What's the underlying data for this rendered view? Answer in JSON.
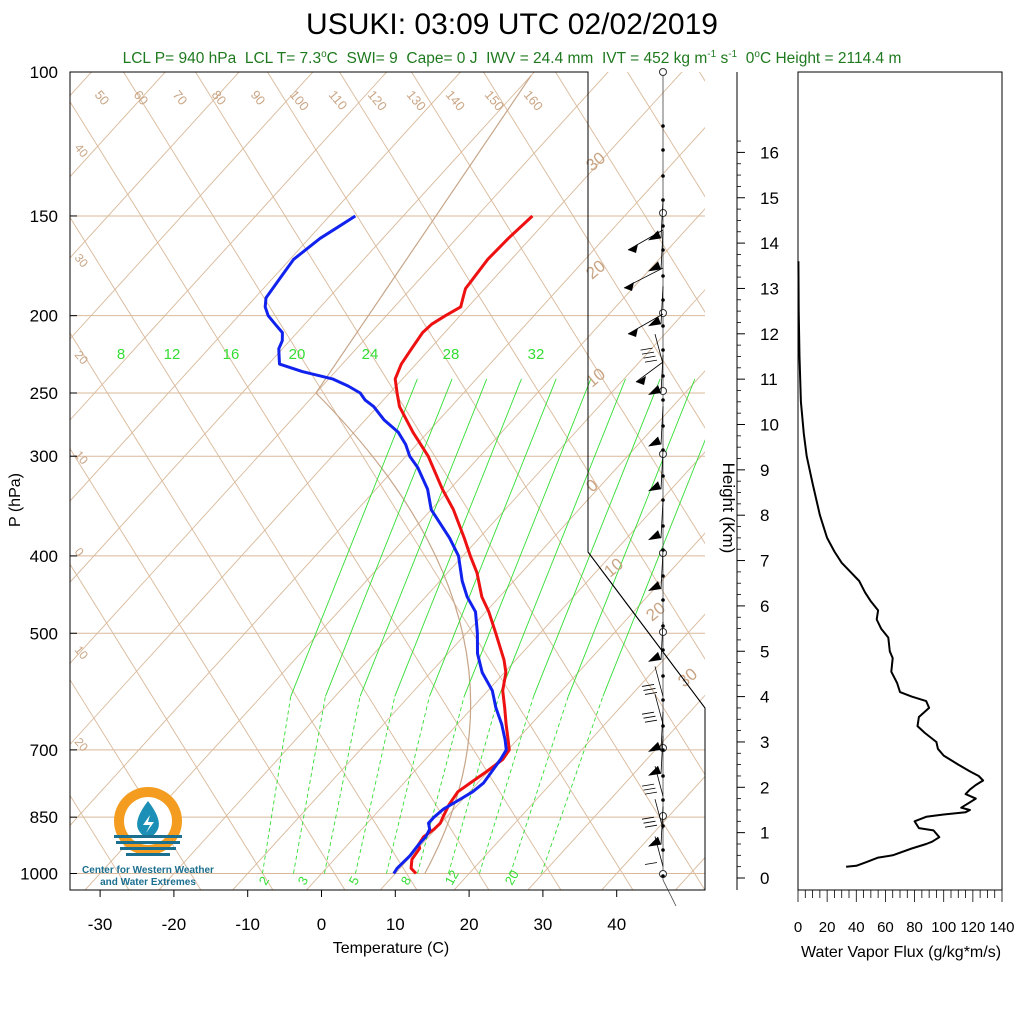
{
  "title": "USUKI: 03:09 UTC 02/02/2019",
  "indices": {
    "lcl_p": "LCL P= 940 hPa",
    "lcl_t": "LCL T= 7.3",
    "lcl_t_unit": "C",
    "swi": "SWI= 9",
    "cape": "Cape= 0 J",
    "iwv": "IWV = 24.4 mm",
    "ivt": "IVT = 452 kg m",
    "ivt_unit_s": " s",
    "zero_c": "0",
    "zero_c_rest": "C Height = 2114.4 m"
  },
  "logo": {
    "line1": "Center for Western Weather",
    "line2": "and Water Extremes"
  },
  "colors": {
    "temperature": "#ee1111",
    "dewpoint": "#1122ee",
    "isotherms": "#d9b99a",
    "mixing_ratio": "#33dd33",
    "info_text": "#1f7a1f",
    "logo_orange": "#f39c1f",
    "logo_blue": "#1b6f8f"
  },
  "chart_data": [
    {
      "type": "line",
      "subtype": "skew-T log-P sounding",
      "xlabel": "Temperature (C)",
      "ylabel": "P (hPa)",
      "xlim": [
        -34,
        44
      ],
      "ylim": [
        1050,
        100
      ],
      "x_ticks": [
        -30,
        -20,
        -10,
        0,
        10,
        20,
        30,
        40
      ],
      "y_ticks": [
        1000,
        850,
        700,
        500,
        400,
        300,
        250,
        200,
        150,
        100
      ],
      "isotherm_labels": [
        {
          "p": 115,
          "t": "50"
        },
        {
          "p": 115,
          "t": "60"
        },
        {
          "p": 115,
          "t": "70"
        },
        {
          "p": 115,
          "t": "80"
        },
        {
          "p": 115,
          "t": "90"
        },
        {
          "p": 115,
          "t": "100"
        },
        {
          "p": 115,
          "t": "110"
        },
        {
          "p": 115,
          "t": "120"
        },
        {
          "p": 115,
          "t": "130"
        },
        {
          "p": 115,
          "t": "140"
        },
        {
          "p": 115,
          "t": "150"
        },
        {
          "p": 115,
          "t": "160"
        }
      ],
      "left_labels": [
        "40",
        "30",
        "20",
        "10",
        "0",
        "10",
        "20"
      ],
      "right_labels": [
        "30",
        "20",
        "10",
        "0",
        "10",
        "20",
        "30"
      ],
      "mixing_ratio_labels_top": [
        "8",
        "12",
        "16",
        "20",
        "24",
        "28",
        "32"
      ],
      "mixing_ratio_labels_bottom": [
        "2",
        "3",
        "5",
        "8",
        "12",
        "20"
      ],
      "series": [
        {
          "name": "Temperature",
          "points": [
            [
              1000,
              12.8
            ],
            [
              985,
              11.5
            ],
            [
              960,
              10.5
            ],
            [
              930,
              10.2
            ],
            [
              920,
              9.6
            ],
            [
              900,
              9.3
            ],
            [
              880,
              9.8
            ],
            [
              865,
              9.9
            ],
            [
              850,
              9.5
            ],
            [
              820,
              8.8
            ],
            [
              790,
              8.4
            ],
            [
              770,
              9.0
            ],
            [
              745,
              9.8
            ],
            [
              720,
              10.5
            ],
            [
              700,
              10.2
            ],
            [
              680,
              8.8
            ],
            [
              650,
              6.6
            ],
            [
              620,
              4.4
            ],
            [
              590,
              2.0
            ],
            [
              560,
              0.2
            ],
            [
              540,
              -1.6
            ],
            [
              500,
              -6.0
            ],
            [
              470,
              -9.6
            ],
            [
              450,
              -12.4
            ],
            [
              420,
              -16.0
            ],
            [
              400,
              -19.0
            ],
            [
              380,
              -22.0
            ],
            [
              350,
              -27.0
            ],
            [
              330,
              -31.0
            ],
            [
              300,
              -37.0
            ],
            [
              280,
              -42.0
            ],
            [
              260,
              -47.0
            ],
            [
              250,
              -49.0
            ],
            [
              240,
              -51.0
            ],
            [
              230,
              -52.0
            ],
            [
              220,
              -52.5
            ],
            [
              210,
              -53.0
            ],
            [
              205,
              -52.8
            ],
            [
              200,
              -52.0
            ],
            [
              195,
              -51.0
            ],
            [
              190,
              -51.8
            ],
            [
              185,
              -52.6
            ],
            [
              180,
              -52.8
            ],
            [
              170,
              -53.2
            ],
            [
              160,
              -53.0
            ],
            [
              150,
              -52.5
            ]
          ]
        },
        {
          "name": "Dewpoint",
          "points": [
            [
              1000,
              9.8
            ],
            [
              985,
              9.6
            ],
            [
              950,
              9.8
            ],
            [
              920,
              9.6
            ],
            [
              900,
              9.6
            ],
            [
              880,
              9.2
            ],
            [
              865,
              8.3
            ],
            [
              850,
              8.3
            ],
            [
              830,
              8.6
            ],
            [
              810,
              9.5
            ],
            [
              790,
              10.4
            ],
            [
              770,
              10.8
            ],
            [
              745,
              10.5
            ],
            [
              720,
              10.2
            ],
            [
              700,
              9.8
            ],
            [
              680,
              8.4
            ],
            [
              650,
              6.0
            ],
            [
              620,
              3.2
            ],
            [
              590,
              0.6
            ],
            [
              560,
              -3.0
            ],
            [
              530,
              -6.0
            ],
            [
              500,
              -8.5
            ],
            [
              470,
              -11.4
            ],
            [
              450,
              -14.4
            ],
            [
              430,
              -17.0
            ],
            [
              400,
              -20.6
            ],
            [
              380,
              -24.0
            ],
            [
              350,
              -30.0
            ],
            [
              330,
              -33.0
            ],
            [
              310,
              -37.0
            ],
            [
              300,
              -39.5
            ],
            [
              290,
              -41.5
            ],
            [
              280,
              -44.0
            ],
            [
              270,
              -47.5
            ],
            [
              260,
              -50.5
            ],
            [
              255,
              -52.5
            ],
            [
              250,
              -54.0
            ],
            [
              245,
              -56.5
            ],
            [
              240,
              -59.5
            ],
            [
              235,
              -64.5
            ],
            [
              230,
              -68.5
            ],
            [
              225,
              -69.5
            ],
            [
              220,
              -70.5
            ],
            [
              215,
              -71.0
            ],
            [
              210,
              -72.0
            ],
            [
              205,
              -74.0
            ],
            [
              200,
              -76.0
            ],
            [
              195,
              -77.5
            ],
            [
              190,
              -78.5
            ],
            [
              180,
              -79.0
            ],
            [
              170,
              -79.5
            ],
            [
              160,
              -78.5
            ],
            [
              155,
              -77.5
            ],
            [
              150,
              -76.5
            ]
          ]
        }
      ]
    },
    {
      "type": "barbs",
      "name": "Wind profile",
      "barbs": [
        {
          "p": 1000,
          "kind": "calm"
        },
        {
          "p": 980,
          "kind": "barb",
          "fl": 1,
          "half": 1
        },
        {
          "p": 920,
          "kind": "flag"
        },
        {
          "p": 880,
          "kind": "barb",
          "fl": 3,
          "half": 1
        },
        {
          "p": 800,
          "kind": "barb",
          "fl": 3,
          "half": 0
        },
        {
          "p": 750,
          "kind": "flag"
        },
        {
          "p": 700,
          "kind": "flag"
        },
        {
          "p": 650,
          "kind": "barb",
          "fl": 3,
          "half": 1
        },
        {
          "p": 600,
          "kind": "barb",
          "fl": 3,
          "half": 0
        },
        {
          "p": 540,
          "kind": "flag"
        },
        {
          "p": 440,
          "kind": "flag"
        },
        {
          "p": 380,
          "kind": "flag"
        },
        {
          "p": 330,
          "kind": "flag"
        },
        {
          "p": 290,
          "kind": "flag"
        },
        {
          "p": 250,
          "kind": "flag"
        },
        {
          "p": 230,
          "kind": "barb",
          "fl": 4,
          "half": 0
        },
        {
          "p": 205,
          "kind": "flag"
        },
        {
          "p": 175,
          "kind": "flag"
        },
        {
          "p": 160,
          "kind": "flag"
        }
      ]
    },
    {
      "type": "line",
      "name": "Water vapor flux profile",
      "xlabel": "Water Vapor Flux (g/kg*m/s)",
      "ylabel": "Height (Km)",
      "xlim": [
        0,
        140
      ],
      "ylim": [
        0,
        16.5
      ],
      "x_ticks": [
        0,
        20,
        40,
        60,
        80,
        100,
        120,
        140
      ],
      "y_ticks": [
        0,
        1,
        2,
        3,
        4,
        5,
        6,
        7,
        8,
        9,
        10,
        11,
        12,
        13,
        14,
        15,
        16
      ],
      "points": [
        [
          33,
          0.25
        ],
        [
          40,
          0.27
        ],
        [
          47,
          0.35
        ],
        [
          55,
          0.45
        ],
        [
          65,
          0.5
        ],
        [
          78,
          0.65
        ],
        [
          88,
          0.75
        ],
        [
          92,
          0.8
        ],
        [
          97,
          0.9
        ],
        [
          93,
          1.05
        ],
        [
          83,
          1.1
        ],
        [
          80,
          1.25
        ],
        [
          88,
          1.35
        ],
        [
          100,
          1.4
        ],
        [
          115,
          1.45
        ],
        [
          118,
          1.5
        ],
        [
          112,
          1.55
        ],
        [
          117,
          1.65
        ],
        [
          122,
          1.75
        ],
        [
          115,
          1.85
        ],
        [
          118,
          1.95
        ],
        [
          122,
          2.05
        ],
        [
          127,
          2.15
        ],
        [
          124,
          2.25
        ],
        [
          118,
          2.35
        ],
        [
          110,
          2.5
        ],
        [
          100,
          2.7
        ],
        [
          96,
          2.85
        ],
        [
          95,
          3.0
        ],
        [
          87,
          3.2
        ],
        [
          82,
          3.35
        ],
        [
          83,
          3.55
        ],
        [
          90,
          3.75
        ],
        [
          88,
          3.9
        ],
        [
          78,
          4.0
        ],
        [
          70,
          4.1
        ],
        [
          68,
          4.3
        ],
        [
          64,
          4.55
        ],
        [
          65,
          4.85
        ],
        [
          63,
          5.0
        ],
        [
          62,
          5.3
        ],
        [
          57,
          5.5
        ],
        [
          54,
          5.7
        ],
        [
          55,
          5.9
        ],
        [
          50,
          6.1
        ],
        [
          46,
          6.3
        ],
        [
          42,
          6.55
        ],
        [
          36,
          6.75
        ],
        [
          30,
          6.95
        ],
        [
          25,
          7.2
        ],
        [
          20,
          7.5
        ],
        [
          15,
          8.0
        ],
        [
          10,
          8.7
        ],
        [
          6,
          9.3
        ],
        [
          4,
          9.8
        ],
        [
          2,
          10.5
        ],
        [
          1,
          11.5
        ],
        [
          0.5,
          12.5
        ],
        [
          0.3,
          13.6
        ]
      ]
    }
  ]
}
